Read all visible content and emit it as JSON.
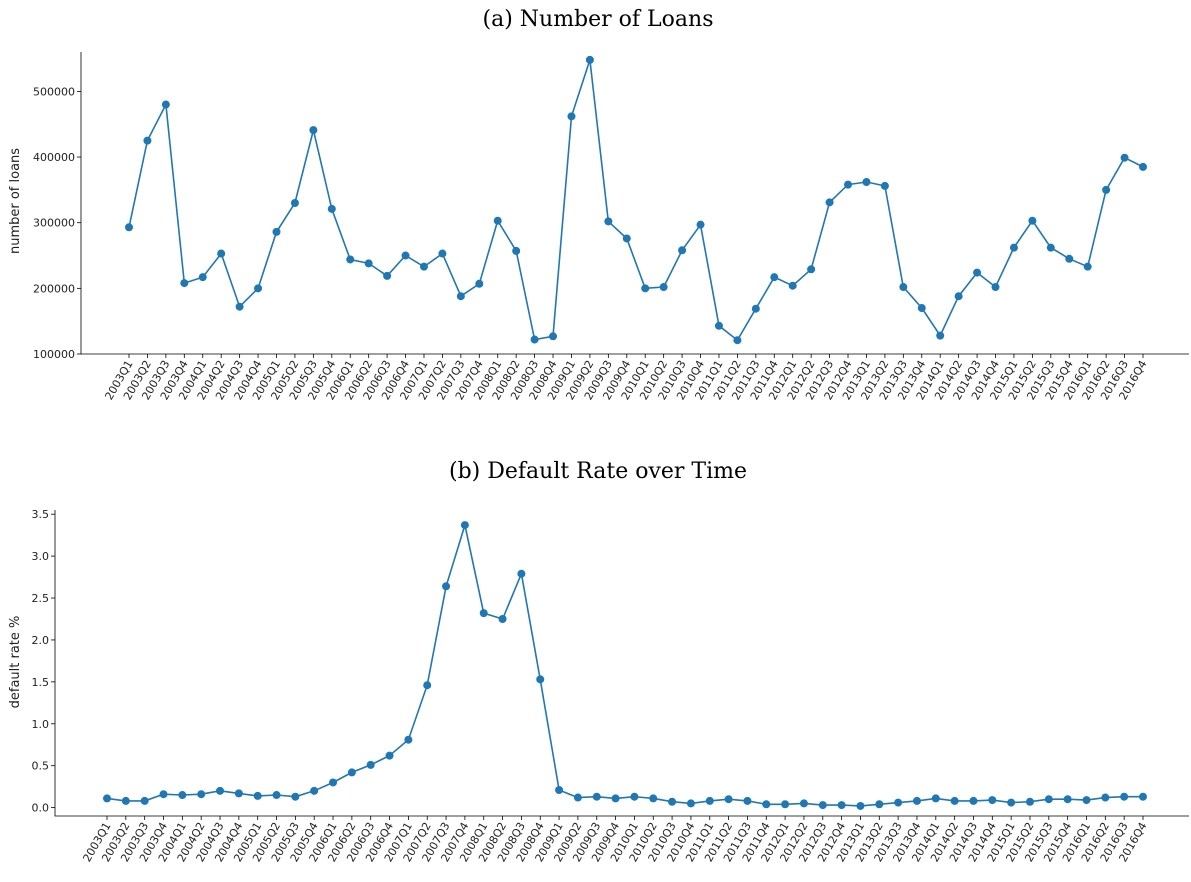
{
  "chart_data": [
    {
      "type": "line",
      "title": "(a) Number of Loans",
      "xlabel": "",
      "ylabel": "number of loans",
      "ylim": [
        100000,
        560000
      ],
      "yticks": [
        100000,
        200000,
        300000,
        400000,
        500000
      ],
      "ytick_labels": [
        "100000",
        "200000",
        "300000",
        "400000",
        "500000"
      ],
      "grid": false,
      "categories": [
        "2003Q1",
        "2003Q2",
        "2003Q3",
        "2003Q4",
        "2004Q1",
        "2004Q2",
        "2004Q3",
        "2004Q4",
        "2005Q1",
        "2005Q2",
        "2005Q3",
        "2005Q4",
        "2006Q1",
        "2006Q2",
        "2006Q3",
        "2006Q4",
        "2007Q1",
        "2007Q2",
        "2007Q3",
        "2007Q4",
        "2008Q1",
        "2008Q2",
        "2008Q3",
        "2008Q4",
        "2009Q1",
        "2009Q2",
        "2009Q3",
        "2009Q4",
        "2010Q1",
        "2010Q2",
        "2010Q3",
        "2010Q4",
        "2011Q1",
        "2011Q2",
        "2011Q3",
        "2011Q4",
        "2012Q1",
        "2012Q2",
        "2012Q3",
        "2012Q4",
        "2013Q1",
        "2013Q2",
        "2013Q3",
        "2013Q4",
        "2014Q1",
        "2014Q2",
        "2014Q3",
        "2014Q4",
        "2015Q1",
        "2015Q2",
        "2015Q3",
        "2015Q4",
        "2016Q1",
        "2016Q2",
        "2016Q3",
        "2016Q4"
      ],
      "values": [
        293000,
        425000,
        480000,
        208000,
        217000,
        253000,
        172000,
        200000,
        286000,
        330000,
        441000,
        321000,
        244000,
        238000,
        219000,
        250000,
        233000,
        253000,
        188000,
        207000,
        303000,
        257000,
        122000,
        127000,
        462000,
        548000,
        302000,
        276000,
        200000,
        202000,
        258000,
        297000,
        143000,
        121000,
        169000,
        217000,
        204000,
        229000,
        331000,
        358000,
        362000,
        356000,
        202000,
        170000,
        128000,
        188000,
        224000,
        202000,
        262000,
        303000,
        262000,
        245000,
        233000,
        350000,
        399000,
        385000
      ],
      "color": "#1f77b4"
    },
    {
      "type": "line",
      "title": "(b) Default Rate over Time",
      "xlabel": "",
      "ylabel": "default rate %",
      "ylim": [
        -0.1,
        3.55
      ],
      "yticks": [
        0.0,
        0.5,
        1.0,
        1.5,
        2.0,
        2.5,
        3.0,
        3.5
      ],
      "ytick_labels": [
        "0.0",
        "0.5",
        "1.0",
        "1.5",
        "2.0",
        "2.5",
        "3.0",
        "3.5"
      ],
      "grid": false,
      "categories": [
        "2003Q1",
        "2003Q2",
        "2003Q3",
        "2003Q4",
        "2004Q1",
        "2004Q2",
        "2004Q3",
        "2004Q4",
        "2005Q1",
        "2005Q2",
        "2005Q3",
        "2005Q4",
        "2006Q1",
        "2006Q2",
        "2006Q3",
        "2006Q4",
        "2007Q1",
        "2007Q2",
        "2007Q3",
        "2007Q4",
        "2008Q1",
        "2008Q2",
        "2008Q3",
        "2008Q4",
        "2009Q1",
        "2009Q2",
        "2009Q3",
        "2009Q4",
        "2010Q1",
        "2010Q2",
        "2010Q3",
        "2010Q4",
        "2011Q1",
        "2011Q2",
        "2011Q3",
        "2011Q4",
        "2012Q1",
        "2012Q2",
        "2012Q3",
        "2012Q4",
        "2013Q1",
        "2013Q2",
        "2013Q3",
        "2013Q4",
        "2014Q1",
        "2014Q2",
        "2014Q3",
        "2014Q4",
        "2015Q1",
        "2015Q2",
        "2015Q3",
        "2015Q4",
        "2016Q1",
        "2016Q2",
        "2016Q3",
        "2016Q4"
      ],
      "values": [
        0.11,
        0.08,
        0.08,
        0.16,
        0.15,
        0.16,
        0.2,
        0.17,
        0.14,
        0.15,
        0.13,
        0.2,
        0.3,
        0.42,
        0.51,
        0.62,
        0.81,
        1.46,
        2.64,
        3.37,
        2.32,
        2.25,
        2.79,
        1.53,
        0.21,
        0.12,
        0.13,
        0.11,
        0.13,
        0.11,
        0.07,
        0.05,
        0.08,
        0.1,
        0.08,
        0.04,
        0.04,
        0.05,
        0.03,
        0.03,
        0.02,
        0.04,
        0.06,
        0.08,
        0.11,
        0.08,
        0.08,
        0.09,
        0.06,
        0.07,
        0.1,
        0.1,
        0.09,
        0.12,
        0.13,
        0.13
      ],
      "color": "#1f77b4"
    }
  ]
}
